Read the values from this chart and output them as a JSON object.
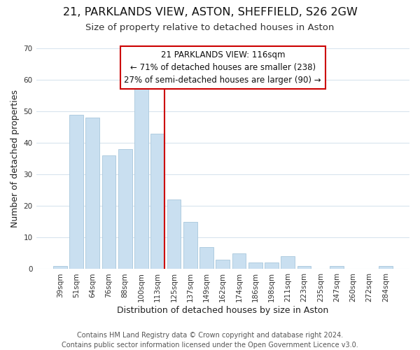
{
  "title": "21, PARKLANDS VIEW, ASTON, SHEFFIELD, S26 2GW",
  "subtitle": "Size of property relative to detached houses in Aston",
  "xlabel": "Distribution of detached houses by size in Aston",
  "ylabel": "Number of detached properties",
  "bar_labels": [
    "39sqm",
    "51sqm",
    "64sqm",
    "76sqm",
    "88sqm",
    "100sqm",
    "113sqm",
    "125sqm",
    "137sqm",
    "149sqm",
    "162sqm",
    "174sqm",
    "186sqm",
    "198sqm",
    "211sqm",
    "223sqm",
    "235sqm",
    "247sqm",
    "260sqm",
    "272sqm",
    "284sqm"
  ],
  "bar_values": [
    1,
    49,
    48,
    36,
    38,
    58,
    43,
    22,
    15,
    7,
    3,
    5,
    2,
    2,
    4,
    1,
    0,
    1,
    0,
    0,
    1
  ],
  "bar_color": "#c9dff0",
  "bar_edge_color": "#b0cce0",
  "marker_index": 6,
  "marker_color": "#cc0000",
  "ylim": [
    0,
    70
  ],
  "yticks": [
    0,
    10,
    20,
    30,
    40,
    50,
    60,
    70
  ],
  "annotation_title": "21 PARKLANDS VIEW: 116sqm",
  "annotation_line1": "← 71% of detached houses are smaller (238)",
  "annotation_line2": "27% of semi-detached houses are larger (90) →",
  "footer1": "Contains HM Land Registry data © Crown copyright and database right 2024.",
  "footer2": "Contains public sector information licensed under the Open Government Licence v3.0.",
  "bg_color": "#ffffff",
  "grid_color": "#d8e4ee",
  "title_fontsize": 11.5,
  "subtitle_fontsize": 9.5,
  "axis_label_fontsize": 9,
  "tick_fontsize": 7.5,
  "footer_fontsize": 7,
  "ann_fontsize": 8.5
}
